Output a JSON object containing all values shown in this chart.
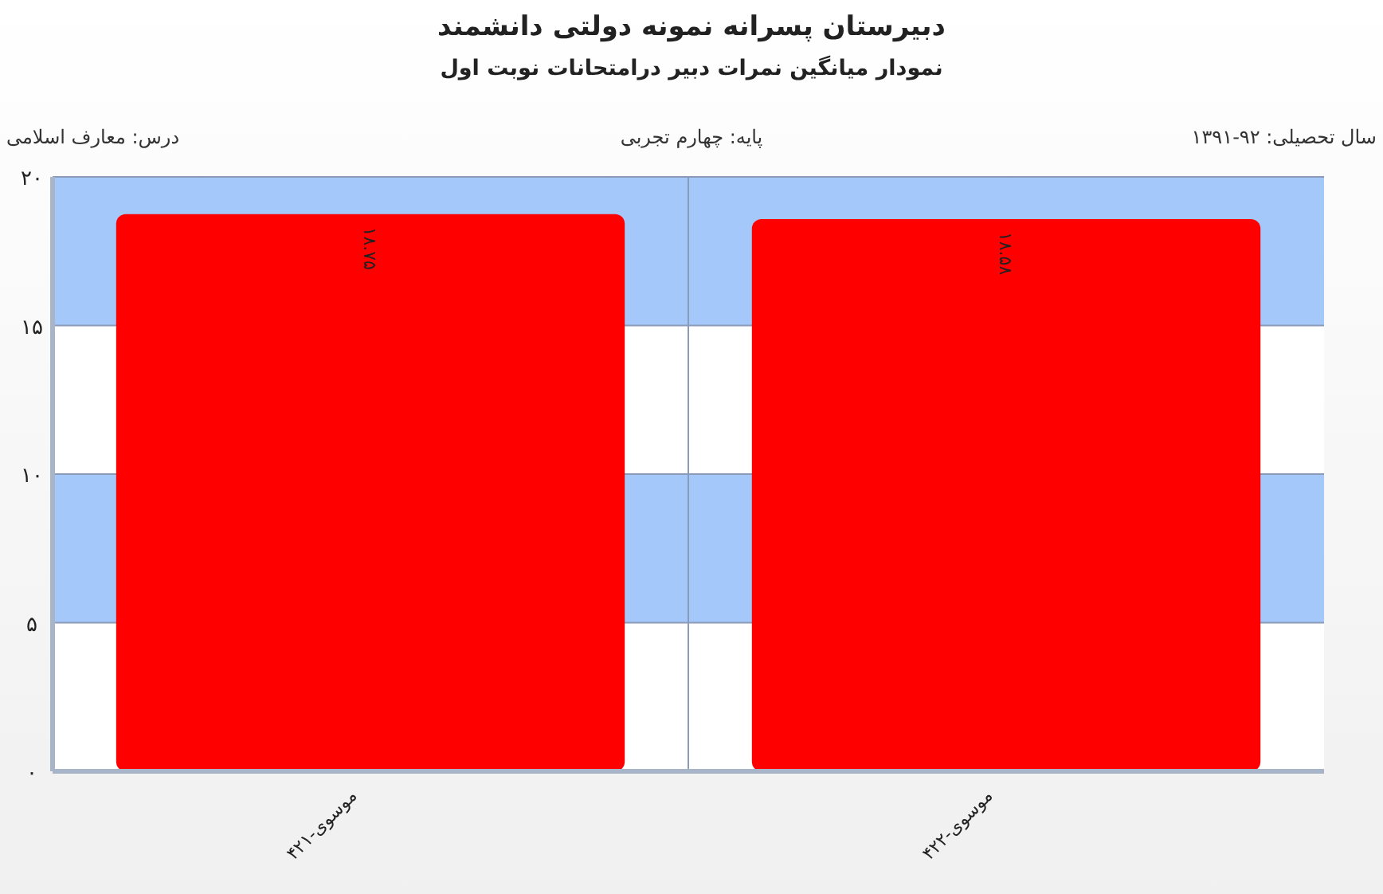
{
  "chart_data": {
    "type": "bar",
    "title": "دبیرستان پسرانه نمونه دولتی دانشمند",
    "subtitle": "نمودار میانگین نمرات دبیر درامتحانات نوبت اول",
    "annotations": [
      "سال تحصیلی: ۹۲-۱۳۹۱",
      "پایه: چهارم تجربی",
      "درس: معارف اسلامی"
    ],
    "categories": [
      "موسوی-۴۲۱",
      "موسوی-۴۲۲"
    ],
    "values": [
      18.75,
      18.58
    ],
    "value_labels": [
      "۱۸.۷۵",
      "۱۸.۵۸"
    ],
    "color": "#ff0000",
    "ylim": [
      0,
      20
    ],
    "yticks": [
      {
        "value": 0,
        "label": "۰"
      },
      {
        "value": 5,
        "label": "۵"
      },
      {
        "value": 10,
        "label": "۱۰"
      },
      {
        "value": 15,
        "label": "۱۵"
      },
      {
        "value": 20,
        "label": "۲۰"
      }
    ],
    "bands": [
      {
        "axis": "y",
        "from": 5,
        "to": 10,
        "color": "#a4c8fa"
      },
      {
        "axis": "y",
        "from": 15,
        "to": 20,
        "color": "#a4c8fa"
      }
    ],
    "grid": true
  }
}
